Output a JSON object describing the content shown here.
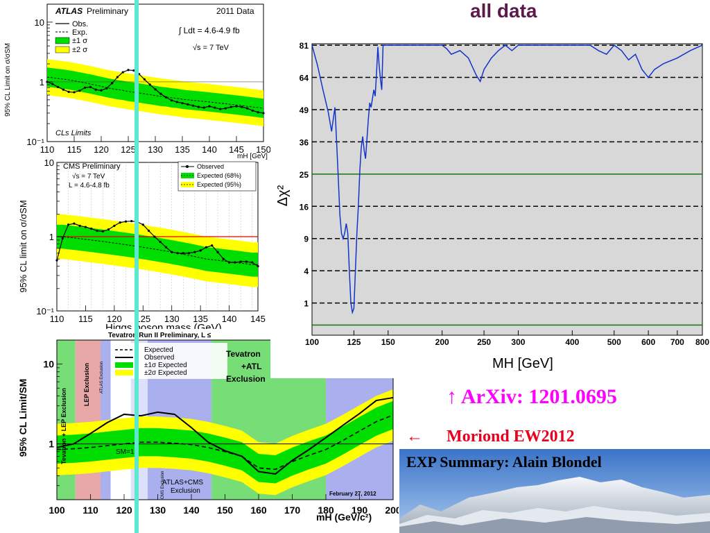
{
  "slide": {
    "title": "all data",
    "arxiv_arrow": "↑",
    "arxiv_text": "ArXiv: 1201.0695",
    "moriond_arrow": "←",
    "moriond_text": "Moriond EW2012",
    "summary_text": "EXP  Summary:   Alain Blondel",
    "colors": {
      "title": "#5a1a4a",
      "arxiv": "#ff00ff",
      "moriond": "#e8001e",
      "cyan_line": "#5fe8d0"
    }
  },
  "chart_data": [
    {
      "id": "atlas",
      "type": "line",
      "header_left": "ATLAS",
      "header_left_suffix": " Preliminary",
      "header_right": "2011 Data",
      "legend": [
        "Obs.",
        "Exp.",
        "±1 σ",
        "±2 σ"
      ],
      "lumi_text": "∫ Ldt = 4.6-4.9 fb",
      "energy_text": "√s = 7 TeV",
      "footer_text": "CLs Limits",
      "ylabel": "95% CL Limit on σ/σSM",
      "xlabel": "mH [GeV]",
      "yticks": [
        "10",
        "1",
        "10⁻¹"
      ],
      "xticks": [
        "110",
        "115",
        "120",
        "125",
        "130",
        "135",
        "140",
        "145",
        "150"
      ],
      "xlim": [
        110,
        150
      ],
      "ylim": [
        0.1,
        20
      ],
      "scale": "log",
      "x": [
        110,
        111,
        112,
        113,
        114,
        115,
        116,
        117,
        118,
        119,
        120,
        121,
        122,
        123,
        124,
        125,
        126,
        127,
        128,
        129,
        130,
        131,
        132,
        133,
        134,
        135,
        136,
        137,
        138,
        139,
        140,
        141,
        142,
        143,
        144,
        145,
        146,
        147,
        148,
        149,
        150
      ],
      "observed": [
        1.0,
        0.92,
        0.82,
        0.74,
        0.68,
        0.67,
        0.71,
        0.8,
        0.82,
        0.74,
        0.72,
        0.78,
        0.95,
        1.2,
        1.45,
        1.58,
        1.55,
        1.35,
        1.1,
        0.9,
        0.75,
        0.63,
        0.55,
        0.49,
        0.46,
        0.44,
        0.42,
        0.4,
        0.38,
        0.37,
        0.39,
        0.37,
        0.35,
        0.36,
        0.38,
        0.39,
        0.38,
        0.36,
        0.33,
        0.31,
        0.3
      ],
      "expected": [
        1.2,
        1.17,
        1.14,
        1.11,
        1.08,
        1.04,
        1.0,
        0.96,
        0.92,
        0.88,
        0.84,
        0.8,
        0.77,
        0.74,
        0.72,
        0.69,
        0.67,
        0.65,
        0.63,
        0.61,
        0.59,
        0.57,
        0.56,
        0.54,
        0.53,
        0.51,
        0.5,
        0.49,
        0.48,
        0.47,
        0.46,
        0.45,
        0.44,
        0.43,
        0.42,
        0.41,
        0.4,
        0.39,
        0.38,
        0.37,
        0.36
      ]
    },
    {
      "id": "cms",
      "type": "line",
      "header_left": "CMS Preliminary",
      "energy_text": "√s = 7 TeV",
      "lumi_text": "L = 4.6-4.8 fb",
      "legend": [
        "Observed",
        "Expected (68%)",
        "Expected (95%)"
      ],
      "ylabel": "95% CL limit on σ/σSM",
      "xlabel": "Higgs boson mass (GeV)",
      "yticks": [
        "10",
        "1",
        "10⁻¹"
      ],
      "xticks": [
        "110",
        "115",
        "120",
        "125",
        "130",
        "135",
        "140",
        "145"
      ],
      "xlim": [
        110,
        145
      ],
      "ylim": [
        0.1,
        10
      ],
      "scale": "log",
      "x": [
        110,
        111,
        112,
        113,
        114,
        115,
        116,
        117,
        118,
        119,
        120,
        121,
        122,
        123,
        124,
        125,
        126,
        127,
        128,
        129,
        130,
        131,
        132,
        133,
        134,
        135,
        136,
        137,
        138,
        139,
        140,
        141,
        142,
        143,
        144,
        145
      ],
      "observed": [
        0.48,
        0.95,
        1.45,
        1.5,
        1.4,
        1.35,
        1.28,
        1.2,
        1.18,
        1.25,
        1.4,
        1.55,
        1.6,
        1.62,
        1.58,
        1.45,
        1.2,
        1.0,
        0.85,
        0.72,
        0.62,
        0.6,
        0.6,
        0.6,
        0.62,
        0.65,
        0.72,
        0.76,
        0.62,
        0.5,
        0.45,
        0.45,
        0.46,
        0.46,
        0.45,
        0.4
      ],
      "expected": [
        1.0,
        1.0,
        0.98,
        0.96,
        0.94,
        0.92,
        0.9,
        0.88,
        0.86,
        0.84,
        0.82,
        0.8,
        0.78,
        0.76,
        0.74,
        0.72,
        0.7,
        0.68,
        0.66,
        0.64,
        0.62,
        0.6,
        0.58,
        0.56,
        0.54,
        0.52,
        0.5,
        0.49,
        0.48,
        0.47,
        0.46,
        0.45,
        0.44,
        0.43,
        0.42,
        0.42
      ]
    },
    {
      "id": "tevatron",
      "type": "line",
      "header_text": "Tevatron Run II Preliminary, L ≤",
      "legend": [
        "Expected",
        "Observed",
        "±1σ Expected",
        "±2σ Expected"
      ],
      "label_tevatron": "Tevatron",
      "label_atl": "+ATL",
      "label_exclusion": "Exclusion",
      "label_sm": "SM=1",
      "label_tevatron_lep": "Tevatron + LEP Exclusion",
      "label_lep": "LEP Exclusion",
      "label_atlas_excl": "ATLAS Exclusion",
      "label_cms_excl": "CMS Exclusion",
      "label_atlas_cms": "ATLAS+CMS",
      "label_atlas_cms2": "Exclusion",
      "date_text": "February 27, 2012",
      "ylabel": "95% CL Limit/SM",
      "xlabel": "mH (GeV/c²)",
      "yticks": [
        "10",
        "1"
      ],
      "xticks": [
        "100",
        "110",
        "120",
        "130",
        "140",
        "150",
        "160",
        "170",
        "180",
        "190",
        "200"
      ],
      "xlim": [
        100,
        200
      ],
      "ylim": [
        0.2,
        20
      ],
      "scale": "log",
      "x": [
        100,
        105,
        110,
        115,
        120,
        125,
        130,
        135,
        140,
        145,
        150,
        155,
        160,
        165,
        170,
        175,
        180,
        185,
        190,
        195,
        200
      ],
      "observed": [
        0.9,
        1.0,
        1.35,
        1.85,
        2.35,
        2.25,
        2.5,
        2.35,
        1.6,
        1.05,
        0.82,
        0.7,
        0.45,
        0.42,
        0.62,
        0.85,
        1.2,
        1.7,
        2.4,
        3.5,
        3.8
      ],
      "expected": [
        0.85,
        0.87,
        0.9,
        0.95,
        1.0,
        1.05,
        1.05,
        1.02,
        0.98,
        0.9,
        0.8,
        0.7,
        0.5,
        0.48,
        0.6,
        0.72,
        0.85,
        1.1,
        1.45,
        1.9,
        2.3
      ]
    },
    {
      "id": "chi2",
      "type": "line",
      "ylabel": "Δχ²",
      "xlabel": "MH [GeV]",
      "yticks": [
        "81",
        "64",
        "49",
        "36",
        "25",
        "16",
        "9",
        "4",
        "1"
      ],
      "xticks": [
        "100",
        "125",
        "150",
        "200",
        "250",
        "300",
        "400",
        "500",
        "600",
        "700",
        "800"
      ],
      "xlim": [
        100,
        800
      ],
      "ylim": [
        0,
        81
      ],
      "scale": "sqrt-y, log-x",
      "x": [
        100,
        103,
        106,
        109,
        111,
        112,
        113,
        114,
        115,
        116,
        117,
        118,
        119,
        120,
        121,
        122,
        123,
        124,
        125,
        126,
        127,
        128,
        129,
        130,
        131,
        132,
        133,
        134,
        135,
        136,
        137,
        138,
        139,
        140,
        141,
        142,
        143,
        144,
        145,
        146,
        150,
        160,
        170,
        180,
        190,
        200,
        205,
        210,
        220,
        230,
        240,
        245,
        250,
        260,
        270,
        280,
        290,
        300,
        320,
        340,
        360,
        380,
        400,
        420,
        440,
        460,
        480,
        500,
        520,
        540,
        560,
        580,
        600,
        620,
        650,
        700,
        750,
        800
      ],
      "values": [
        81,
        70,
        58,
        48,
        40,
        45,
        50,
        36,
        24,
        14,
        10,
        9,
        10,
        12,
        10,
        4,
        1,
        0.5,
        0.7,
        4,
        10,
        16,
        26,
        34,
        38,
        33,
        30,
        37,
        45,
        52,
        50,
        54,
        58,
        55,
        66,
        80,
        70,
        63,
        58,
        81,
        81,
        81,
        81,
        81,
        81,
        81,
        79,
        76,
        78,
        74,
        65,
        62,
        68,
        74,
        78,
        81,
        78,
        81,
        81,
        81,
        81,
        81,
        81,
        81,
        81,
        78,
        76,
        81,
        78,
        73,
        76,
        68,
        64,
        68,
        71,
        74,
        78,
        81
      ]
    }
  ]
}
